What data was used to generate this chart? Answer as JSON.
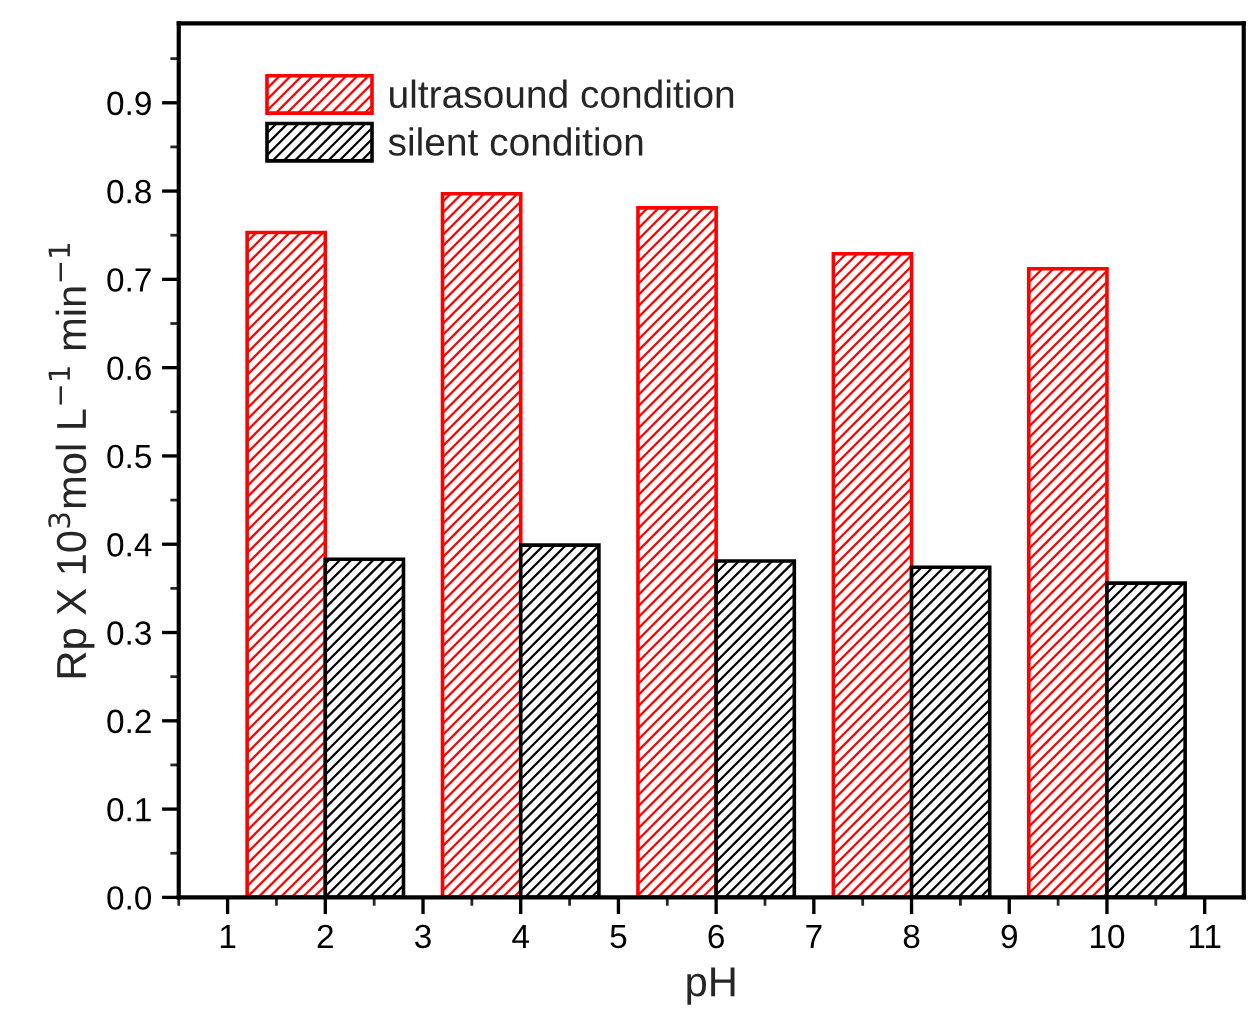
{
  "chart_data": {
    "type": "bar",
    "xlabel": "pH",
    "ylabel": "Rp X 10$^{3}$mol L$^{−1}$ min$^{−1}$",
    "x": [
      2,
      4,
      6,
      8,
      10
    ],
    "series": [
      {
        "name": "ultrasound condition",
        "color": "#ff0000",
        "values": [
          0.753,
          0.797,
          0.781,
          0.729,
          0.712
        ]
      },
      {
        "name": "silent condition",
        "color": "#000000",
        "values": [
          0.383,
          0.399,
          0.381,
          0.374,
          0.356
        ]
      }
    ],
    "xlim": [
      0.5,
      11.4
    ],
    "xticks": [
      1,
      2,
      3,
      4,
      5,
      6,
      7,
      8,
      9,
      10,
      11
    ],
    "ylim": [
      0,
      0.99
    ],
    "yticks": [
      "0.0",
      0.1,
      0.2,
      0.3,
      0.4,
      0.5,
      0.6,
      0.7,
      0.8,
      0.9
    ],
    "legend": "top left",
    "grid": false
  }
}
